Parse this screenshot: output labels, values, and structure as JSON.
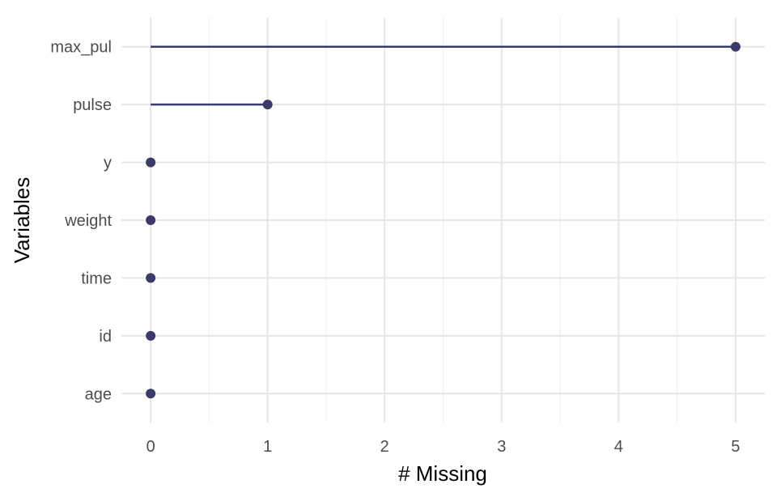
{
  "chart_data": {
    "type": "lollipop",
    "title": "",
    "xlabel": "# Missing",
    "ylabel": "Variables",
    "xlim": [
      -0.25,
      5.25
    ],
    "x_ticks": [
      0,
      1,
      2,
      3,
      4,
      5
    ],
    "x_tick_labels": [
      "0",
      "1",
      "2",
      "3",
      "4",
      "5"
    ],
    "grid": true,
    "legend": "none",
    "categories": [
      "max_pul",
      "pulse",
      "y",
      "weight",
      "time",
      "id",
      "age"
    ],
    "values": [
      5,
      1,
      0,
      0,
      0,
      0,
      0
    ],
    "colors": {
      "marker": "#3a3a6b",
      "grid_major": "#e6e6e6",
      "grid_minor": "#f0f0f0"
    }
  }
}
